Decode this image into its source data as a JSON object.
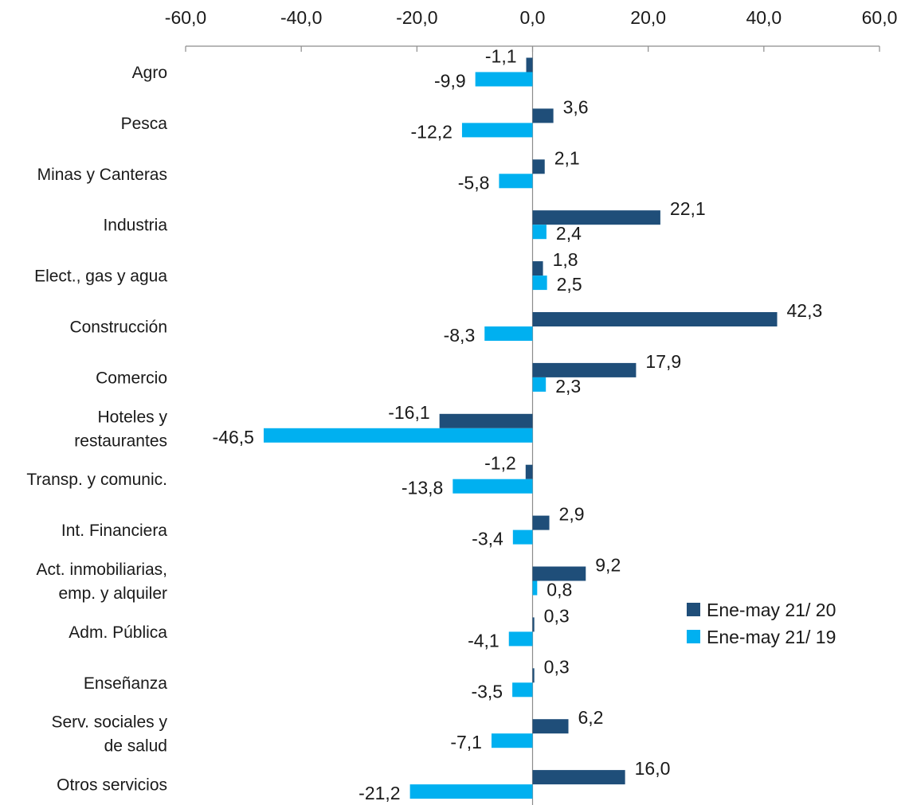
{
  "chart_data": {
    "type": "bar",
    "orientation": "horizontal",
    "title": "",
    "xlabel": "",
    "ylabel": "",
    "xlim": [
      -60,
      60
    ],
    "x_ticks": [
      "-60,0",
      "-40,0",
      "-20,0",
      "0,0",
      "20,0",
      "40,0",
      "60,0"
    ],
    "x_tick_values": [
      -60,
      -40,
      -20,
      0,
      20,
      40,
      60
    ],
    "x_axis_position": "top",
    "grid": false,
    "legend_position": "right",
    "categories": [
      [
        "Agro"
      ],
      [
        "Pesca"
      ],
      [
        "Minas y Canteras"
      ],
      [
        "Industria"
      ],
      [
        "Elect., gas y agua"
      ],
      [
        "Construcción"
      ],
      [
        "Comercio"
      ],
      [
        "Hoteles y",
        "restaurantes"
      ],
      [
        "Transp. y comunic."
      ],
      [
        "Int. Financiera"
      ],
      [
        "Act. inmobiliarias,",
        "emp. y alquiler"
      ],
      [
        "Adm. Pública"
      ],
      [
        "Enseñanza"
      ],
      [
        "Serv. sociales y",
        "de salud"
      ],
      [
        "Otros servicios"
      ]
    ],
    "series": [
      {
        "name": "Ene-may 21/ 20",
        "color": "#1f4e79",
        "values": [
          -1.1,
          3.6,
          2.1,
          22.1,
          1.8,
          42.3,
          17.9,
          -16.1,
          -1.2,
          2.9,
          9.2,
          0.3,
          0.3,
          6.2,
          16.0
        ],
        "labels": [
          "-1,1",
          "3,6",
          "2,1",
          "22,1",
          "1,8",
          "42,3",
          "17,9",
          "-16,1",
          "-1,2",
          "2,9",
          "9,2",
          "0,3",
          "0,3",
          "6,2",
          "16,0"
        ]
      },
      {
        "name": "Ene-may 21/ 19",
        "color": "#00b0f0",
        "values": [
          -9.9,
          -12.2,
          -5.8,
          2.4,
          2.5,
          -8.3,
          2.3,
          -46.5,
          -13.8,
          -3.4,
          0.8,
          -4.1,
          -3.5,
          -7.1,
          -21.2
        ],
        "labels": [
          "-9,9",
          "-12,2",
          "-5,8",
          "2,4",
          "2,5",
          "-8,3",
          "2,3",
          "-46,5",
          "-13,8",
          "-3,4",
          "0,8",
          "-4,1",
          "-3,5",
          "-7,1",
          "-21,2"
        ]
      }
    ]
  }
}
